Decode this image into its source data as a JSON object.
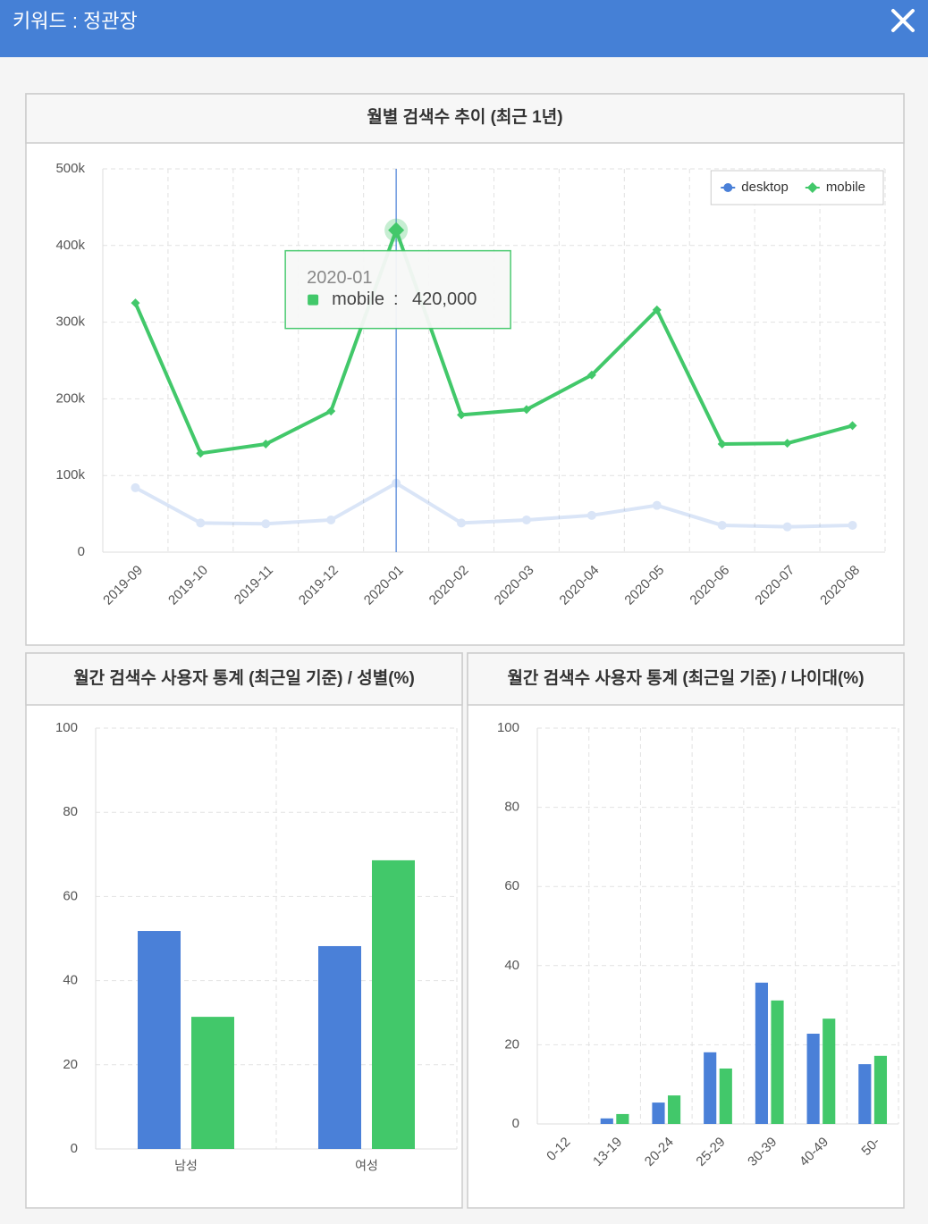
{
  "header": {
    "title": "키워드 : 정관장"
  },
  "chart_data": [
    {
      "type": "line",
      "title": "월별 검색수 추이 (최근 1년)",
      "categories": [
        "2019-09",
        "2019-10",
        "2019-11",
        "2019-12",
        "2020-01",
        "2020-02",
        "2020-03",
        "2020-04",
        "2020-05",
        "2020-06",
        "2020-07",
        "2020-08"
      ],
      "series": [
        {
          "name": "desktop",
          "color": "#4a80d8",
          "values": [
            84000,
            38000,
            37000,
            42000,
            90000,
            38000,
            42000,
            48000,
            61000,
            35000,
            33000,
            35000
          ]
        },
        {
          "name": "mobile",
          "color": "#42c86a",
          "values": [
            325000,
            129000,
            141000,
            184000,
            420000,
            179000,
            186000,
            231000,
            316000,
            141000,
            142000,
            165000
          ]
        }
      ],
      "ylim": [
        0,
        500000
      ],
      "yticks": [
        0,
        {
          "value": 100000,
          "label": "100k"
        },
        {
          "value": 200000,
          "label": "200k"
        },
        {
          "value": 300000,
          "label": "300k"
        },
        {
          "value": 400000,
          "label": "400k"
        },
        {
          "value": 500000,
          "label": "500k"
        }
      ],
      "grid": true,
      "legend": "top-right",
      "tooltip": {
        "category": "2020-01",
        "series": "mobile",
        "separator": ":",
        "value": 420000,
        "label": "420,000"
      }
    },
    {
      "type": "bar",
      "title": "월간 검색수 사용자 통계 (최근일 기준) / 성별(%)",
      "categories": [
        "남성",
        "여성"
      ],
      "series": [
        {
          "color": "#4a80d8",
          "values": [
            51.8,
            48.2
          ]
        },
        {
          "color": "#42c86a",
          "values": [
            31.4,
            68.6
          ]
        }
      ],
      "ylim": [
        0,
        100
      ],
      "yticks": [
        0,
        20,
        40,
        60,
        80,
        100
      ],
      "grid": true
    },
    {
      "type": "bar",
      "title": "월간 검색수 사용자 통계 (최근일 기준) / 나이대(%)",
      "categories": [
        "0-12",
        "13-19",
        "20-24",
        "25-29",
        "30-39",
        "40-49",
        "50-"
      ],
      "series": [
        {
          "color": "#4a80d8",
          "values": [
            0,
            1.4,
            5.4,
            18.1,
            35.7,
            22.8,
            15.1
          ]
        },
        {
          "color": "#42c86a",
          "values": [
            0,
            2.5,
            7.2,
            14.0,
            31.2,
            26.6,
            17.2
          ]
        }
      ],
      "ylim": [
        0,
        100
      ],
      "yticks": [
        0,
        20,
        40,
        60,
        80,
        100
      ],
      "grid": true,
      "rotate_labels": true
    }
  ]
}
